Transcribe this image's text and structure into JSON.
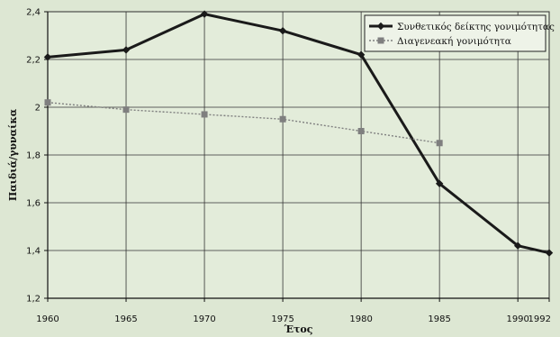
{
  "chart_data": {
    "type": "line",
    "title": "",
    "xlabel": "Έτος",
    "ylabel": "Παιδιά/γυναίκα",
    "xlim": [
      1960,
      1992
    ],
    "ylim": [
      1.2,
      2.4
    ],
    "x_ticks": [
      1960,
      1965,
      1970,
      1975,
      1980,
      1985,
      1990,
      1992
    ],
    "y_ticks": [
      "1,2",
      "1,4",
      "1,6",
      "1,8",
      "2",
      "2,2",
      "2,4"
    ],
    "y_tick_values": [
      1.2,
      1.4,
      1.6,
      1.8,
      2.0,
      2.2,
      2.4
    ],
    "grid": true,
    "legend_position": "top-right",
    "series": [
      {
        "name": "Συνθετικός δείκτης γονιμότητας",
        "color": "#1a1a1a",
        "marker": "diamond",
        "line": "solid",
        "x": [
          1960,
          1965,
          1970,
          1975,
          1980,
          1985,
          1990,
          1992
        ],
        "y": [
          2.21,
          2.24,
          2.39,
          2.32,
          2.22,
          1.68,
          1.42,
          1.39
        ]
      },
      {
        "name": "Διαγενεακή γονιμότητα",
        "color": "#7f7f7f",
        "marker": "square",
        "line": "dotted",
        "x": [
          1960,
          1965,
          1970,
          1975,
          1980,
          1985
        ],
        "y": [
          2.02,
          1.99,
          1.97,
          1.95,
          1.9,
          1.85
        ]
      }
    ]
  }
}
